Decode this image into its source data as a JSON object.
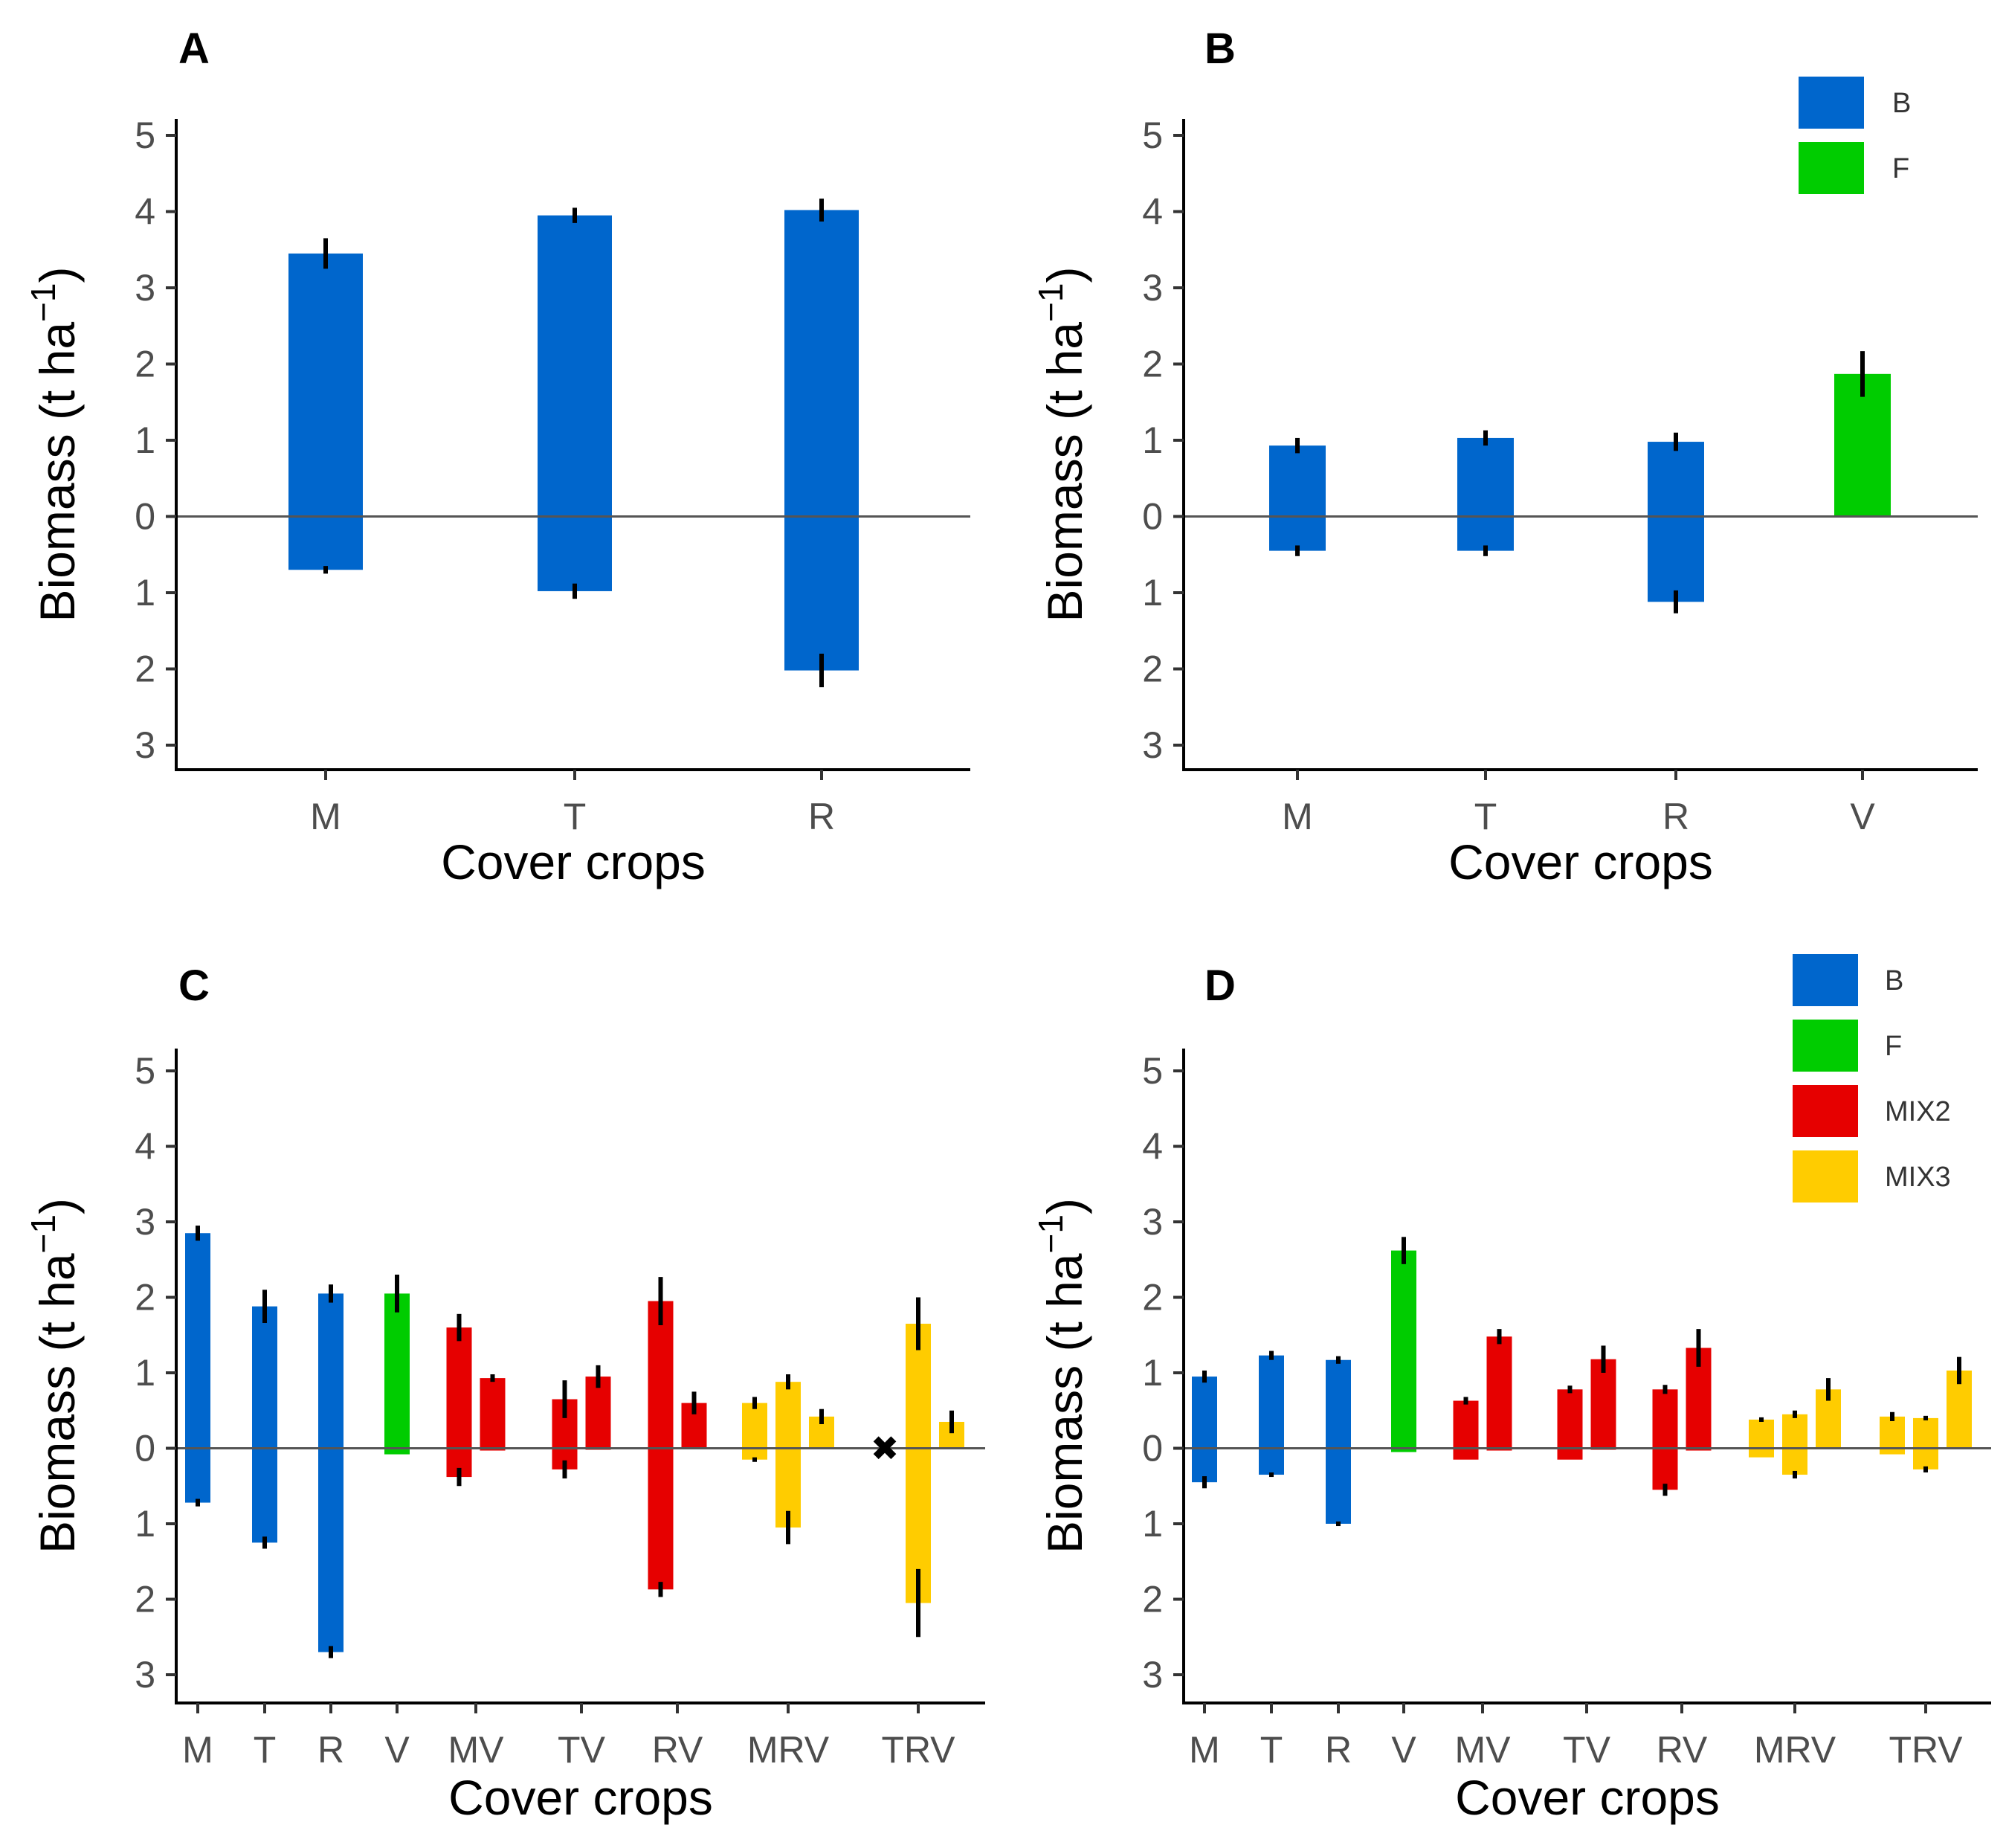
{
  "colors": {
    "B": "#0066cc",
    "F": "#00cc00",
    "MIX2": "#e60000",
    "MIX3": "#ffcc00",
    "axis": "#000000",
    "zero_line": "#555555",
    "error_bar": "#000000"
  },
  "chart_data": [
    {
      "type": "bar",
      "panel": "A",
      "title": "A",
      "xlabel": "Cover crops",
      "ylabel": "Biomass (t ha",
      "ylabel_superscript": "−1",
      "ylabel_close": ")",
      "ylim": [
        -3,
        5
      ],
      "ytick_values": [
        5,
        4,
        3,
        2,
        1,
        0,
        -1,
        -2,
        -3
      ],
      "ytick_labels": [
        "5",
        "4",
        "3",
        "2",
        "1",
        "0",
        "1",
        "2",
        "3"
      ],
      "categories": [
        "M",
        "T",
        "R"
      ],
      "bars": [
        {
          "category": "M",
          "group": "B",
          "top": 3.45,
          "top_err": 0.2,
          "bottom": -0.7,
          "bottom_err": 0.05
        },
        {
          "category": "T",
          "group": "B",
          "top": 3.95,
          "top_err": 0.1,
          "bottom": -0.98,
          "bottom_err": 0.1
        },
        {
          "category": "R",
          "group": "B",
          "top": 4.02,
          "top_err": 0.15,
          "bottom": -2.02,
          "bottom_err": 0.22
        }
      ],
      "legend": []
    },
    {
      "type": "bar",
      "panel": "B",
      "title": "B",
      "xlabel": "Cover crops",
      "ylabel": "Biomass (t ha",
      "ylabel_superscript": "−1",
      "ylabel_close": ")",
      "ylim": [
        -3,
        5
      ],
      "ytick_values": [
        5,
        4,
        3,
        2,
        1,
        0,
        -1,
        -2,
        -3
      ],
      "ytick_labels": [
        "5",
        "4",
        "3",
        "2",
        "1",
        "0",
        "1",
        "2",
        "3"
      ],
      "categories": [
        "M",
        "T",
        "R",
        "V"
      ],
      "bars": [
        {
          "category": "M",
          "group": "B",
          "top": 0.93,
          "top_err": 0.1,
          "bottom": -0.45,
          "bottom_err": 0.07
        },
        {
          "category": "T",
          "group": "B",
          "top": 1.03,
          "top_err": 0.1,
          "bottom": -0.45,
          "bottom_err": 0.07
        },
        {
          "category": "R",
          "group": "B",
          "top": 0.98,
          "top_err": 0.12,
          "bottom": -1.12,
          "bottom_err": 0.15
        },
        {
          "category": "V",
          "group": "F",
          "top": 1.87,
          "top_err": 0.3,
          "bottom": 0,
          "bottom_err": 0
        }
      ],
      "legend": [
        "B",
        "F"
      ]
    },
    {
      "type": "bar",
      "panel": "C",
      "title": "C",
      "xlabel": "Cover crops",
      "ylabel": "Biomass (t ha",
      "ylabel_superscript": "−1",
      "ylabel_close": ")",
      "ylim": [
        -3,
        5
      ],
      "ytick_values": [
        5,
        4,
        3,
        2,
        1,
        0,
        -1,
        -2,
        -3
      ],
      "ytick_labels": [
        "5",
        "4",
        "3",
        "2",
        "1",
        "0",
        "1",
        "2",
        "3"
      ],
      "categories": [
        "M",
        "T",
        "R",
        "V",
        "MV",
        "TV",
        "RV",
        "MRV",
        "TRV"
      ],
      "bars": [
        {
          "category": "M",
          "slot": 0,
          "group": "B",
          "top": 2.85,
          "top_err": 0.1,
          "bottom": -0.72,
          "bottom_err": 0.05
        },
        {
          "category": "T",
          "slot": 0,
          "group": "B",
          "top": 1.88,
          "top_err": 0.22,
          "bottom": -1.25,
          "bottom_err": 0.08
        },
        {
          "category": "R",
          "slot": 0,
          "group": "B",
          "top": 2.05,
          "top_err": 0.12,
          "bottom": -2.7,
          "bottom_err": 0.08
        },
        {
          "category": "V",
          "slot": 0,
          "group": "F",
          "top": 2.05,
          "top_err": 0.25,
          "bottom": -0.08,
          "bottom_err": 0
        },
        {
          "category": "MV",
          "slot": 0,
          "group": "MIX2",
          "top": 1.6,
          "top_err": 0.18,
          "bottom": -0.38,
          "bottom_err": 0.12
        },
        {
          "category": "MV",
          "slot": 1,
          "group": "MIX2",
          "top": 0.93,
          "top_err": 0.05,
          "bottom": -0.03,
          "bottom_err": 0
        },
        {
          "category": "TV",
          "slot": 0,
          "group": "MIX2",
          "top": 0.65,
          "top_err": 0.25,
          "bottom": -0.28,
          "bottom_err": 0.12
        },
        {
          "category": "TV",
          "slot": 1,
          "group": "MIX2",
          "top": 0.95,
          "top_err": 0.15,
          "bottom": -0.02,
          "bottom_err": 0
        },
        {
          "category": "RV",
          "slot": 0,
          "group": "MIX2",
          "top": 1.95,
          "top_err": 0.32,
          "bottom": -1.87,
          "bottom_err": 0.1
        },
        {
          "category": "RV",
          "slot": 1,
          "group": "MIX2",
          "top": 0.6,
          "top_err": 0.15,
          "bottom": 0,
          "bottom_err": 0
        },
        {
          "category": "MRV",
          "slot": 0,
          "group": "MIX3",
          "top": 0.6,
          "top_err": 0.08,
          "bottom": -0.15,
          "bottom_err": 0.03
        },
        {
          "category": "MRV",
          "slot": 1,
          "group": "MIX3",
          "top": 0.88,
          "top_err": 0.1,
          "bottom": -1.05,
          "bottom_err": 0.22
        },
        {
          "category": "MRV",
          "slot": 2,
          "group": "MIX3",
          "top": 0.42,
          "top_err": 0.1,
          "bottom": 0,
          "bottom_err": 0
        },
        {
          "category": "TRV",
          "slot": 1,
          "group": "MIX3",
          "top": 1.65,
          "top_err": 0.35,
          "bottom": -2.05,
          "bottom_err": 0.45
        },
        {
          "category": "TRV",
          "slot": 2,
          "group": "MIX3",
          "top": 0.35,
          "top_err": 0.15,
          "bottom": 0,
          "bottom_err": 0
        }
      ],
      "annotations": [
        {
          "text": "✖",
          "category": "TRV",
          "slot": 0,
          "y": 0
        }
      ],
      "legend": []
    },
    {
      "type": "bar",
      "panel": "D",
      "title": "D",
      "xlabel": "Cover crops",
      "ylabel": "Biomass (t ha",
      "ylabel_superscript": "−1",
      "ylabel_close": ")",
      "ylim": [
        -3,
        5
      ],
      "ytick_values": [
        5,
        4,
        3,
        2,
        1,
        0,
        -1,
        -2,
        -3
      ],
      "ytick_labels": [
        "5",
        "4",
        "3",
        "2",
        "1",
        "0",
        "1",
        "2",
        "3"
      ],
      "categories": [
        "M",
        "T",
        "R",
        "V",
        "MV",
        "TV",
        "RV",
        "MRV",
        "TRV"
      ],
      "bars": [
        {
          "category": "M",
          "slot": 0,
          "group": "B",
          "top": 0.95,
          "top_err": 0.08,
          "bottom": -0.45,
          "bottom_err": 0.08
        },
        {
          "category": "T",
          "slot": 0,
          "group": "B",
          "top": 1.23,
          "top_err": 0.06,
          "bottom": -0.35,
          "bottom_err": 0.03
        },
        {
          "category": "R",
          "slot": 0,
          "group": "B",
          "top": 1.17,
          "top_err": 0.05,
          "bottom": -1.0,
          "bottom_err": 0.03
        },
        {
          "category": "V",
          "slot": 0,
          "group": "F",
          "top": 2.62,
          "top_err": 0.18,
          "bottom": -0.05,
          "bottom_err": 0
        },
        {
          "category": "MV",
          "slot": 0,
          "group": "MIX2",
          "top": 0.63,
          "top_err": 0.05,
          "bottom": -0.15,
          "bottom_err": 0
        },
        {
          "category": "MV",
          "slot": 1,
          "group": "MIX2",
          "top": 1.48,
          "top_err": 0.1,
          "bottom": -0.03,
          "bottom_err": 0
        },
        {
          "category": "TV",
          "slot": 0,
          "group": "MIX2",
          "top": 0.78,
          "top_err": 0.05,
          "bottom": -0.15,
          "bottom_err": 0
        },
        {
          "category": "TV",
          "slot": 1,
          "group": "MIX2",
          "top": 1.18,
          "top_err": 0.18,
          "bottom": -0.02,
          "bottom_err": 0
        },
        {
          "category": "RV",
          "slot": 0,
          "group": "MIX2",
          "top": 0.78,
          "top_err": 0.06,
          "bottom": -0.55,
          "bottom_err": 0.08
        },
        {
          "category": "RV",
          "slot": 1,
          "group": "MIX2",
          "top": 1.33,
          "top_err": 0.25,
          "bottom": -0.03,
          "bottom_err": 0
        },
        {
          "category": "MRV",
          "slot": 0,
          "group": "MIX3",
          "top": 0.38,
          "top_err": 0.03,
          "bottom": -0.12,
          "bottom_err": 0
        },
        {
          "category": "MRV",
          "slot": 1,
          "group": "MIX3",
          "top": 0.45,
          "top_err": 0.05,
          "bottom": -0.35,
          "bottom_err": 0.05
        },
        {
          "category": "MRV",
          "slot": 2,
          "group": "MIX3",
          "top": 0.78,
          "top_err": 0.15,
          "bottom": 0,
          "bottom_err": 0
        },
        {
          "category": "TRV",
          "slot": 0,
          "group": "MIX3",
          "top": 0.42,
          "top_err": 0.06,
          "bottom": -0.08,
          "bottom_err": 0
        },
        {
          "category": "TRV",
          "slot": 1,
          "group": "MIX3",
          "top": 0.4,
          "top_err": 0.03,
          "bottom": -0.28,
          "bottom_err": 0.04
        },
        {
          "category": "TRV",
          "slot": 2,
          "group": "MIX3",
          "top": 1.03,
          "top_err": 0.18,
          "bottom": 0,
          "bottom_err": 0
        }
      ],
      "legend": [
        "B",
        "F",
        "MIX2",
        "MIX3"
      ]
    }
  ]
}
